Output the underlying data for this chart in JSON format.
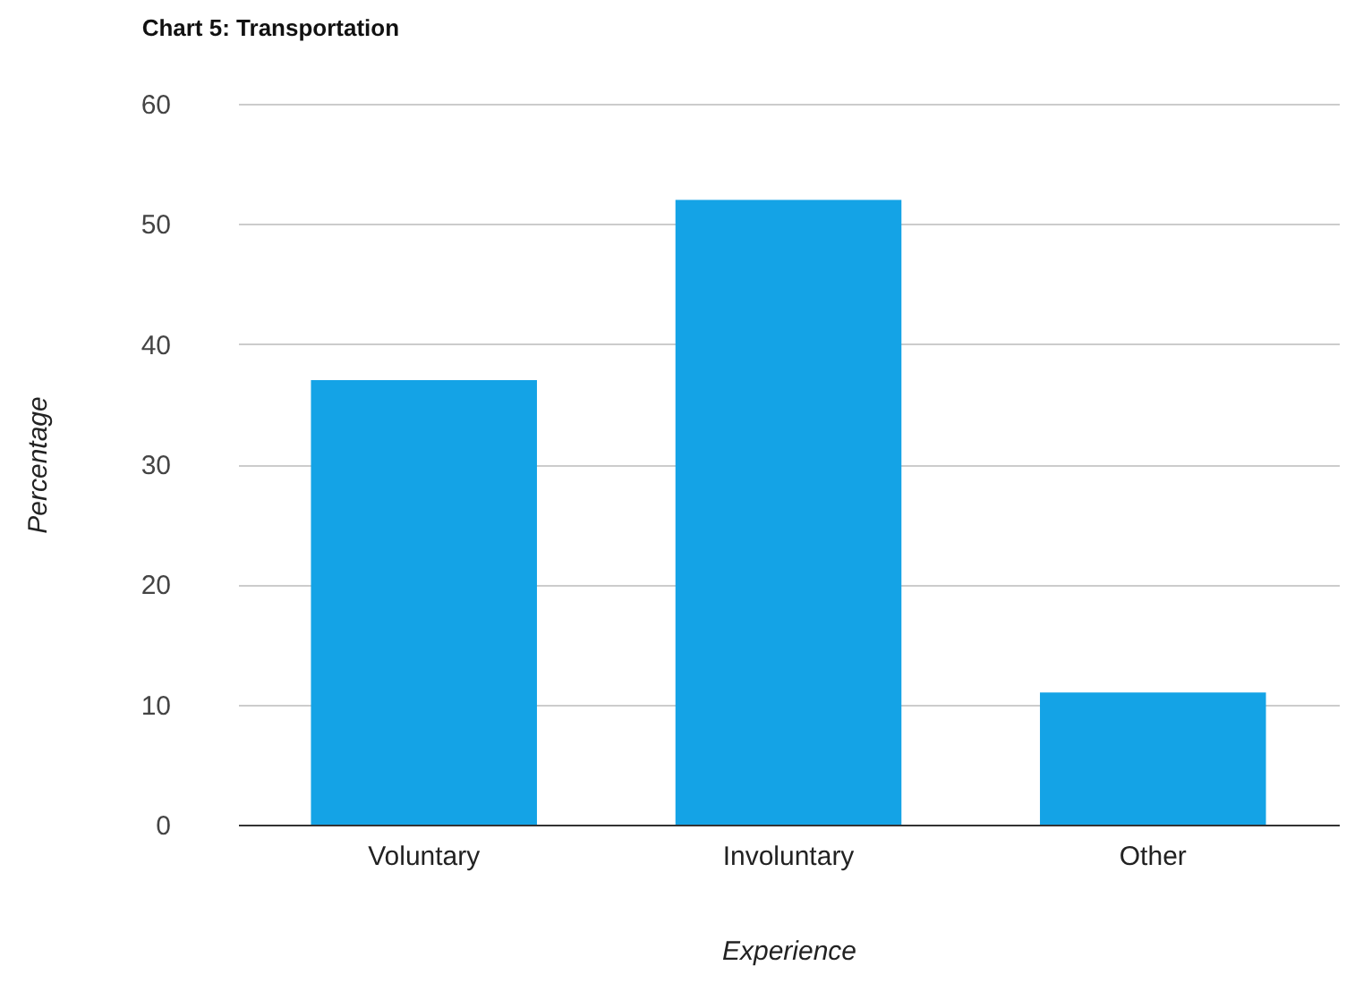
{
  "chart_data": {
    "type": "bar",
    "title": "Chart 5: Transportation",
    "xlabel": "Experience",
    "ylabel": "Percentage",
    "categories": [
      "Voluntary",
      "Involuntary",
      "Other"
    ],
    "values": [
      37,
      52,
      11
    ],
    "color": "#14a3e6",
    "ylim": [
      0,
      60
    ],
    "yticks": [
      0,
      10,
      20,
      30,
      40,
      50,
      60
    ],
    "grid": "y"
  }
}
